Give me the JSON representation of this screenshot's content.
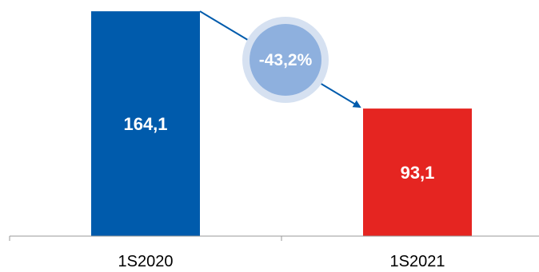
{
  "chart_data": {
    "type": "bar",
    "categories": [
      "1S2020",
      "1S2021"
    ],
    "values": [
      164.1,
      93.1
    ],
    "value_labels": [
      "164,1",
      "93,1"
    ],
    "colors": [
      "#005bac",
      "#e52521"
    ],
    "change_label": "-43,2%",
    "change_badge_color": "#8eb0de",
    "change_badge_ring_color": "#d6e1f1",
    "arrow_color": "#005bac",
    "ylim": [
      0,
      170
    ]
  }
}
